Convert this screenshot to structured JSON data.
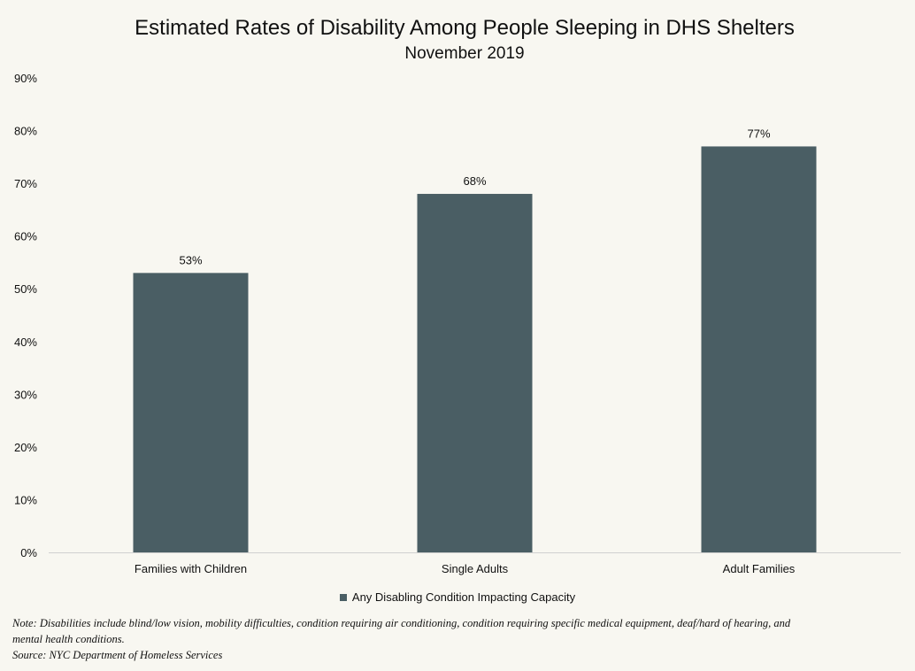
{
  "chart_data": {
    "type": "bar",
    "title": "Estimated Rates of Disability Among People Sleeping in DHS Shelters",
    "subtitle": "November 2019",
    "categories": [
      "Families with Children",
      "Single Adults",
      "Adult Families"
    ],
    "series": [
      {
        "name": "Any Disabling Condition Impacting Capacity",
        "values": [
          53,
          68,
          77
        ]
      }
    ],
    "data_labels": [
      "53%",
      "68%",
      "77%"
    ],
    "y_ticks": [
      "0%",
      "10%",
      "20%",
      "30%",
      "40%",
      "50%",
      "60%",
      "70%",
      "80%",
      "90%"
    ],
    "ylim": [
      0,
      90
    ],
    "xlabel": "",
    "ylabel": "",
    "grid": false,
    "legend_position": "bottom",
    "bar_color": "#4a5e64"
  },
  "footer": {
    "note_line1": "Note: Disabilities include blind/low vision, mobility difficulties, condition requiring air conditioning, condition requiring specific medical equipment, deaf/hard of hearing, and",
    "note_line2": "mental health conditions.",
    "source": "Source: NYC Department of Homeless Services"
  }
}
